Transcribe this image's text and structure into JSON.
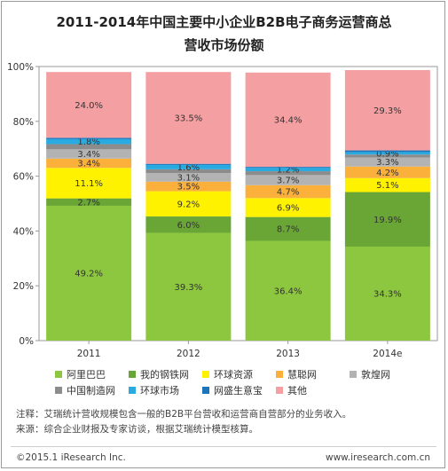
{
  "title_line1": "2011-2014年中国主要中小企业B2B电子商务运营商总",
  "title_line2": "营收市场份额",
  "chart_data": {
    "type": "bar",
    "stacked": true,
    "categories": [
      "2011",
      "2012",
      "2013",
      "2014e"
    ],
    "ylim": [
      0,
      100
    ],
    "yticks": [
      "0%",
      "20%",
      "40%",
      "60%",
      "80%",
      "100%"
    ],
    "series": [
      {
        "name": "阿里巴巴",
        "color": "#8dc63f",
        "values": [
          49.2,
          39.3,
          36.4,
          34.3
        ]
      },
      {
        "name": "我的钢铁网",
        "color": "#6aa636",
        "values": [
          2.7,
          6.0,
          8.7,
          19.9
        ]
      },
      {
        "name": "环球资源",
        "color": "#fff200",
        "values": [
          11.1,
          9.2,
          6.9,
          5.1
        ]
      },
      {
        "name": "慧聪网",
        "color": "#fbb03b",
        "values": [
          3.4,
          3.5,
          4.7,
          4.2
        ]
      },
      {
        "name": "敦煌网",
        "color": "#b3b3b3",
        "values": [
          3.4,
          3.1,
          3.7,
          3.3
        ]
      },
      {
        "name": "中国制造网",
        "color": "#8c8c8c",
        "values": [
          1.9,
          1.4,
          1.4,
          1.1
        ]
      },
      {
        "name": "环球市场",
        "color": "#29abe2",
        "values": [
          1.8,
          1.6,
          1.2,
          0.9
        ]
      },
      {
        "name": "网盛生意宝",
        "color": "#1b75bb",
        "values": [
          0.5,
          0.4,
          0.4,
          0.6
        ]
      },
      {
        "name": "其他",
        "color": "#f4a0a2",
        "values": [
          24.0,
          33.5,
          34.4,
          29.3
        ]
      }
    ],
    "labels": [
      [
        "49.2%",
        "39.3%",
        "36.4%",
        "34.3%"
      ],
      [
        "2.7%",
        "6.0%",
        "8.7%",
        "19.9%"
      ],
      [
        "11.1%",
        "9.2%",
        "6.9%",
        "5.1%"
      ],
      [
        "3.4%",
        "3.5%",
        "4.7%",
        "4.2%"
      ],
      [
        "3.4%",
        "3.1%",
        "3.7%",
        "3.3%"
      ],
      null,
      [
        "1.8%",
        "1.6%",
        "1.2%",
        "0.9%"
      ],
      null,
      [
        "24.0%",
        "33.5%",
        "34.4%",
        "29.3%"
      ]
    ],
    "grid": false,
    "legend_position": "bottom"
  },
  "note": "注释：艾瑞统计营收规模包含一般的B2B平台营收和运营商自营部分的业务收入。",
  "source": "来源：综合企业财报及专家访谈，根据艾瑞统计模型核算。",
  "copyright": "©2015.1 iResearch Inc.",
  "website": "www.iresearch.com.cn"
}
